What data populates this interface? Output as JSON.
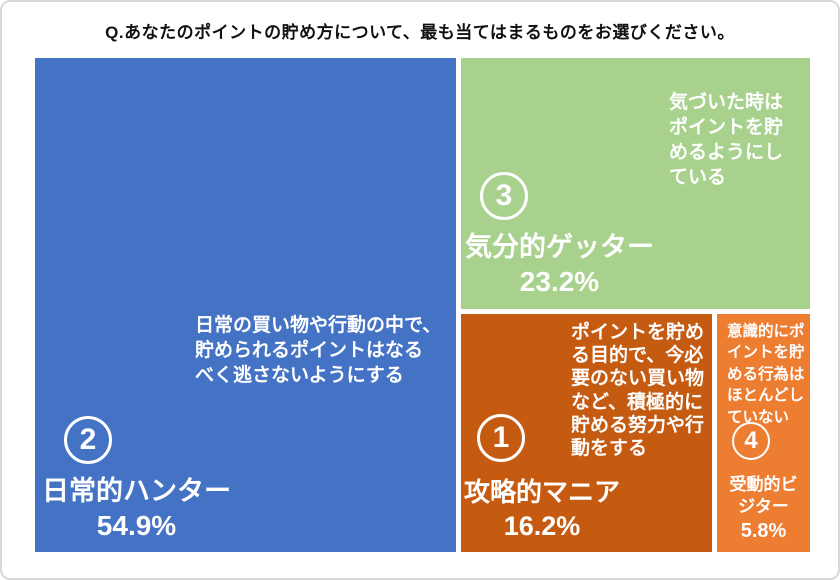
{
  "title": "Q.あなたのポイントの貯め方について、最も当てはまるものをお選びください。",
  "chart_data": {
    "type": "treemap",
    "title": "Q.あなたのポイントの貯め方について、最も当てはまるものをお選びください。",
    "unit": "%",
    "segments": [
      {
        "number": "1",
        "label": "攻略的マニア",
        "value": 16.2,
        "pct": "16.2%",
        "description": "ポイントを貯め\nる目的で、今必\n要のない買い物\nなど、積極的に\n貯める努力や行\n動をする",
        "color": "#C55A11"
      },
      {
        "number": "2",
        "label": "日常的ハンター",
        "value": 54.9,
        "pct": "54.9%",
        "description": "日常の買い物や行動の中で、\n貯められるポイントはなる\nべく逃さないようにする",
        "color": "#4472C4"
      },
      {
        "number": "3",
        "label": "気分的ゲッター",
        "value": 23.2,
        "pct": "23.2%",
        "description": "気づいた時は\nポイントを貯\nめるようにし\nている",
        "color": "#A9D18E"
      },
      {
        "number": "4",
        "label": "受動的ビジター",
        "value": 5.8,
        "pct": "5.8%",
        "description": "意識的にポ\nイントを貯\nめる行為は\nほとんどし\nていない",
        "color": "#ED7D31"
      }
    ]
  }
}
